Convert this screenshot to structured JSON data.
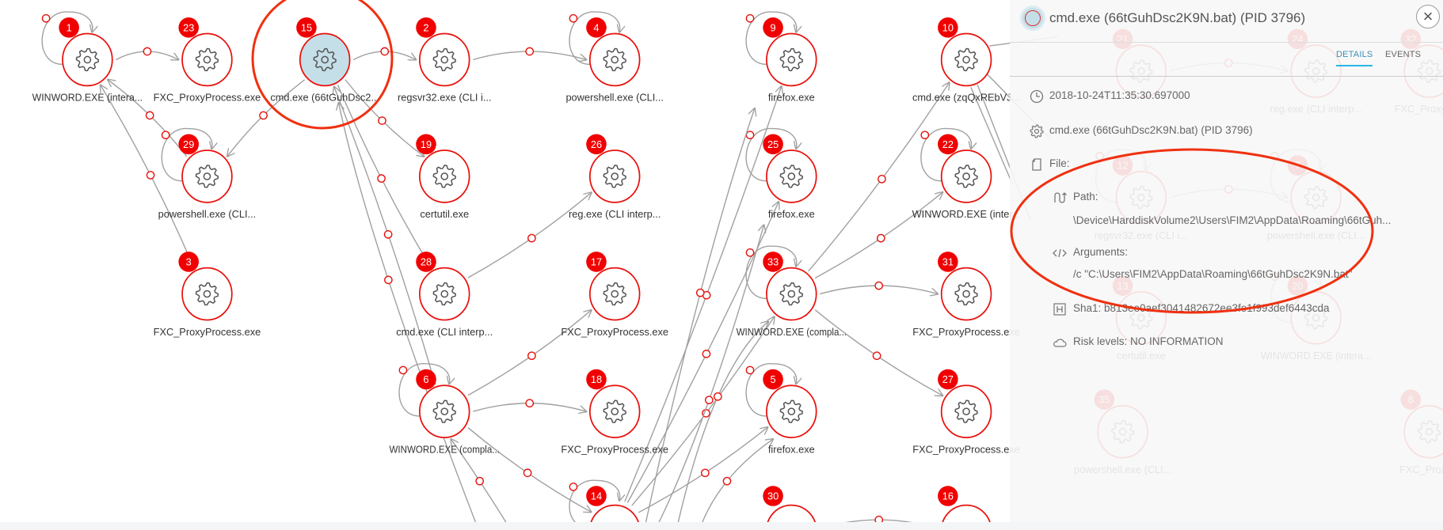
{
  "graph": {
    "nodes": [
      {
        "id": "1",
        "label": "WINWORD.EXE (intera..."
      },
      {
        "id": "23",
        "label": "FXC_ProxyProcess.exe"
      },
      {
        "id": "15",
        "label": "cmd.exe (66tGuhDsc2...",
        "selected": true
      },
      {
        "id": "2",
        "label": "regsvr32.exe (CLI i..."
      },
      {
        "id": "4",
        "label": "powershell.exe (CLI..."
      },
      {
        "id": "9",
        "label": "firefox.exe"
      },
      {
        "id": "10",
        "label": "cmd.exe (zqQxREbVJ..."
      },
      {
        "id": "29",
        "label": "powershell.exe (CLI..."
      },
      {
        "id": "19",
        "label": "certutil.exe"
      },
      {
        "id": "26",
        "label": "reg.exe (CLI interp..."
      },
      {
        "id": "25",
        "label": "firefox.exe"
      },
      {
        "id": "22",
        "label": "WINWORD.EXE (inter..."
      },
      {
        "id": "3",
        "label": "FXC_ProxyProcess.exe"
      },
      {
        "id": "28",
        "label": "cmd.exe (CLI interp..."
      },
      {
        "id": "17",
        "label": "FXC_ProxyProcess.exe"
      },
      {
        "id": "33",
        "label": "WINWORD.EXE (compla..."
      },
      {
        "id": "31",
        "label": "FXC_ProxyProcess.exe"
      },
      {
        "id": "6",
        "label": "WINWORD.EXE (compla..."
      },
      {
        "id": "18",
        "label": "FXC_ProxyProcess.exe"
      },
      {
        "id": "5",
        "label": "firefox.exe"
      },
      {
        "id": "27",
        "label": "FXC_ProxyProcess.exe"
      },
      {
        "id": "14",
        "label": ""
      },
      {
        "id": "30",
        "label": ""
      },
      {
        "id": "16",
        "label": ""
      },
      {
        "id": "21",
        "label": ""
      },
      {
        "id": "24",
        "label": "reg.exe (CLI interp..."
      },
      {
        "id": "32",
        "label": "FXC_ProxyPr..."
      },
      {
        "id": "12",
        "label": "regsvr32.exe (CLI i..."
      },
      {
        "id": "7",
        "label": "powershell.exe (CLI..."
      },
      {
        "id": "13",
        "label": "certutil.exe"
      },
      {
        "id": "20",
        "label": "WINWORD.EXE (intera..."
      },
      {
        "id": "35",
        "label": "powershell.exe (CLI..."
      },
      {
        "id": "8",
        "label": "FXC_Proxy..."
      }
    ],
    "self_loops": [
      "1",
      "4",
      "9",
      "25",
      "33",
      "5",
      "22",
      "29",
      "6",
      "14",
      "12",
      "7",
      "20"
    ],
    "edges": [
      {
        "from": "1",
        "to": "23"
      },
      {
        "from": "15",
        "to": "2"
      },
      {
        "from": "2",
        "to": "4"
      },
      {
        "from": "15",
        "to": "29"
      },
      {
        "from": "29",
        "to": "1"
      },
      {
        "from": "3",
        "to": "1"
      },
      {
        "from": "15",
        "to": "19"
      },
      {
        "from": "15",
        "to": "28"
      },
      {
        "from": "6",
        "to": "15"
      },
      {
        "from": "28",
        "to": "26"
      },
      {
        "from": "6",
        "to": "17"
      },
      {
        "from": "6",
        "to": "18"
      },
      {
        "from": "6",
        "to": "14"
      },
      {
        "from": "14",
        "to": "9"
      },
      {
        "from": "14",
        "to": "25"
      },
      {
        "from": "14",
        "to": "33"
      },
      {
        "from": "14",
        "to": "5"
      },
      {
        "from": "33",
        "to": "10"
      },
      {
        "from": "33",
        "to": "22"
      },
      {
        "from": "33",
        "to": "31"
      },
      {
        "from": "33",
        "to": "27"
      },
      {
        "from": "30",
        "to": "16"
      },
      {
        "from": "21",
        "to": "24"
      },
      {
        "from": "12",
        "to": "7"
      }
    ],
    "colors": {
      "node_stroke": "#e8100b",
      "badge": "#f00000",
      "edge": "#a0a0a0",
      "selected_fill": "#c5dfe8",
      "annotation": "#f03010"
    }
  },
  "panel": {
    "title": "cmd.exe (66tGuhDsc2K9N.bat) (PID 3796)",
    "close_icon": "close-icon",
    "tabs": [
      {
        "label": "DETAILS",
        "active": true
      },
      {
        "label": "EVENTS",
        "active": false
      }
    ],
    "timestamp": "2018-10-24T11:35:30.697000",
    "process": "cmd.exe (66tGuhDsc2K9N.bat) (PID 3796)",
    "file_label": "File:",
    "path_label": "Path:",
    "path_value": "\\Device\\HarddiskVolume2\\Users\\FIM2\\AppData\\Roaming\\66tGuh...",
    "arguments_label": "Arguments:",
    "arguments_value": "/c \"C:\\Users\\FIM2\\AppData\\Roaming\\66tGuhDsc2K9N.bat\"",
    "sha1": "Sha1: b813ee0aef3041482672ee3fe1f993def6443cda",
    "risk": "Risk levels: NO INFORMATION"
  }
}
